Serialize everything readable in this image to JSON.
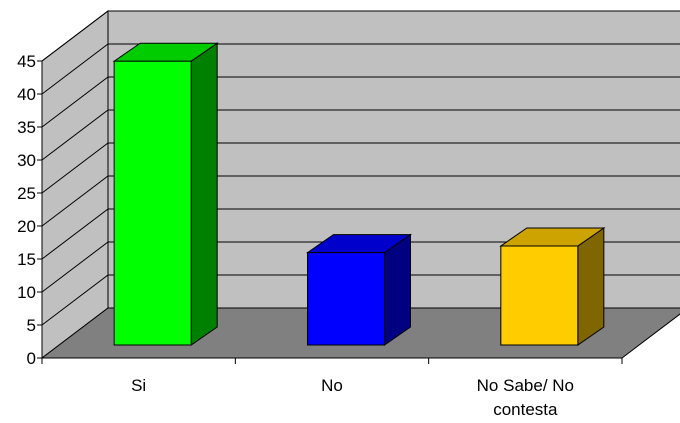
{
  "chart_data": {
    "type": "bar",
    "style": "3d-column",
    "title": "",
    "xlabel": "",
    "ylabel": "",
    "ylim": [
      0,
      45
    ],
    "yticks": [
      0,
      5,
      10,
      15,
      20,
      25,
      30,
      35,
      40,
      45
    ],
    "grid": true,
    "legend": "none",
    "categories": [
      [
        "Si"
      ],
      [
        "No"
      ],
      [
        "No Sabe/ No",
        "contesta"
      ]
    ],
    "values": [
      43,
      14,
      15
    ],
    "colors": {
      "bars": [
        "#00ff00",
        "#0000ff",
        "#ffcc00"
      ],
      "bar_sides": [
        "#008000",
        "#000080",
        "#806600"
      ],
      "bar_tops": [
        "#00cc00",
        "#0000cc",
        "#cca300"
      ],
      "back_wall": "#c0c0c0",
      "side_wall": "#c0c0c0",
      "floor": "#808080",
      "gridline": "#000000"
    }
  }
}
